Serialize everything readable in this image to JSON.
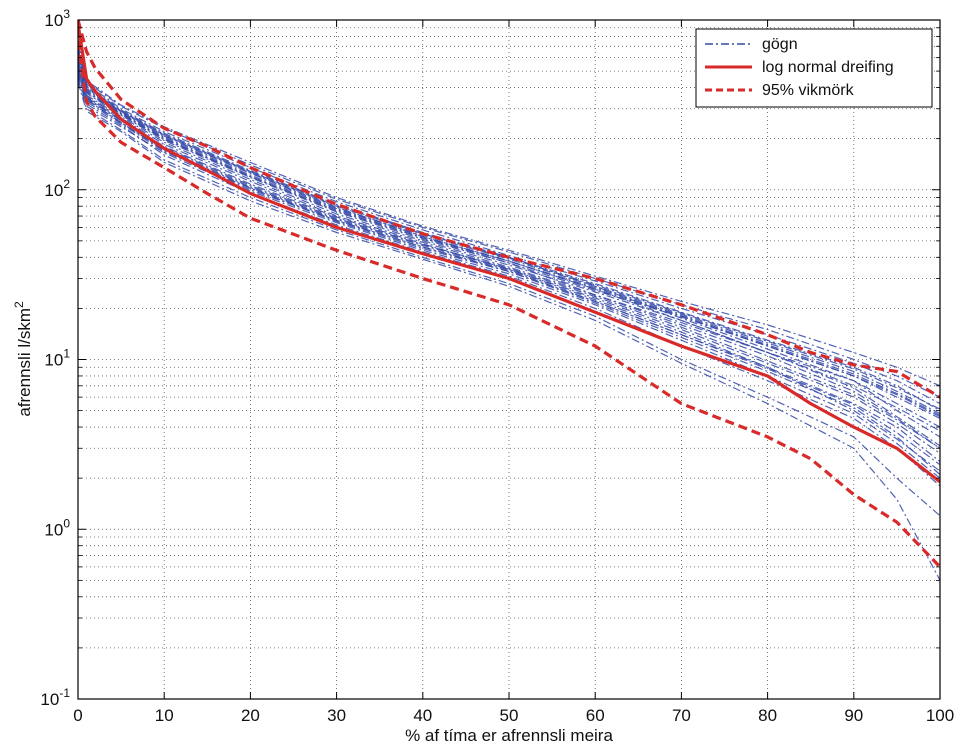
{
  "chart_data": {
    "type": "line",
    "title": "",
    "xlabel": "% af tíma er afrennsli meira",
    "ylabel": "afrennsli l/skm",
    "ylabel_superscript": "2",
    "xlim": [
      0,
      100
    ],
    "ylim": [
      0.1,
      1000
    ],
    "yscale": "log",
    "grid": true,
    "legend_position": "top-right",
    "x_ticks": [
      "0",
      "10",
      "20",
      "30",
      "40",
      "50",
      "60",
      "70",
      "80",
      "90",
      "100"
    ],
    "y_ticks": [
      {
        "base": "10",
        "exp": "-1"
      },
      {
        "base": "10",
        "exp": "0"
      },
      {
        "base": "10",
        "exp": "1"
      },
      {
        "base": "10",
        "exp": "2"
      },
      {
        "base": "10",
        "exp": "3"
      }
    ],
    "legend": [
      {
        "label": "gögn",
        "style": "dashdot-blue"
      },
      {
        "label": "log normal dreifing",
        "style": "solid-red"
      },
      {
        "label": "95% vikmörk",
        "style": "dashed-red"
      }
    ],
    "colors": {
      "data": "#3348a8",
      "fit": "#d92a2a"
    },
    "series": [
      {
        "name": "log normal dreifing",
        "style": "solid-red",
        "x": [
          0,
          1,
          2,
          5,
          10,
          15,
          20,
          30,
          40,
          50,
          60,
          70,
          80,
          85,
          90,
          95,
          100
        ],
        "y": [
          950,
          450,
          380,
          260,
          175,
          130,
          95,
          60,
          42,
          30,
          19,
          12,
          8,
          5.5,
          4,
          3,
          1.9
        ]
      },
      {
        "name": "95% vikmörk (upper)",
        "style": "dashed-red",
        "x": [
          0,
          1,
          2,
          5,
          10,
          15,
          20,
          30,
          40,
          50,
          60,
          70,
          80,
          85,
          90,
          95,
          100
        ],
        "y": [
          1000,
          650,
          520,
          340,
          230,
          180,
          135,
          82,
          55,
          40,
          30,
          21,
          14,
          11,
          9.3,
          8.5,
          6
        ]
      },
      {
        "name": "95% vikmörk (lower)",
        "style": "dashed-red",
        "x": [
          0,
          1,
          2,
          5,
          10,
          15,
          20,
          30,
          40,
          50,
          60,
          70,
          80,
          85,
          90,
          95,
          100
        ],
        "y": [
          750,
          330,
          270,
          190,
          135,
          95,
          68,
          44,
          30,
          21,
          12,
          5.5,
          3.5,
          2.6,
          1.6,
          1.1,
          0.6
        ]
      }
    ],
    "data_curves": {
      "name": "gögn",
      "style": "dashdot-blue",
      "x": [
        0,
        1,
        5,
        10,
        20,
        30,
        40,
        50,
        60,
        70,
        80,
        90,
        95,
        100
      ],
      "curves": [
        [
          600,
          380,
          280,
          200,
          120,
          75,
          52,
          38,
          26,
          18,
          12,
          8,
          6,
          4.5
        ],
        [
          550,
          360,
          270,
          190,
          115,
          72,
          50,
          36,
          25,
          17,
          11,
          7.5,
          5.5,
          4
        ],
        [
          720,
          400,
          290,
          210,
          128,
          80,
          55,
          40,
          28,
          19,
          13,
          9,
          7,
          5
        ],
        [
          500,
          340,
          250,
          170,
          100,
          66,
          46,
          33,
          22,
          14,
          9,
          5.5,
          4,
          2.5
        ],
        [
          650,
          420,
          300,
          220,
          135,
          85,
          58,
          41,
          29,
          20,
          14,
          9.5,
          7.5,
          5.5
        ],
        [
          480,
          320,
          240,
          160,
          95,
          62,
          43,
          31,
          20,
          12,
          7.5,
          4.5,
          3,
          1.8
        ],
        [
          580,
          370,
          275,
          195,
          118,
          74,
          51,
          37,
          24,
          16,
          10.5,
          6.5,
          4.5,
          3
        ],
        [
          700,
          430,
          310,
          230,
          140,
          88,
          60,
          43,
          30,
          21,
          15,
          10,
          8,
          6
        ],
        [
          450,
          300,
          225,
          150,
          90,
          58,
          40,
          28,
          18,
          10,
          6,
          3.5,
          2,
          1.2
        ],
        [
          620,
          390,
          285,
          205,
          125,
          78,
          54,
          39,
          27,
          18.5,
          12.5,
          8.5,
          6.5,
          4.8
        ],
        [
          520,
          350,
          260,
          180,
          108,
          69,
          48,
          34,
          23,
          15,
          9.5,
          6,
          4.2,
          2.8
        ],
        [
          680,
          410,
          295,
          215,
          130,
          82,
          56,
          40,
          27,
          17.5,
          11.5,
          7.5,
          5,
          3.5
        ],
        [
          560,
          355,
          265,
          185,
          112,
          70,
          49,
          35,
          24,
          16.5,
          11,
          7,
          5.2,
          3.8
        ],
        [
          470,
          310,
          235,
          165,
          98,
          64,
          44,
          32,
          21,
          13,
          8,
          4.8,
          3.2,
          2
        ],
        [
          640,
          395,
          288,
          208,
          126,
          79,
          53,
          38,
          26,
          17,
          11,
          6.8,
          4.6,
          3.1
        ],
        [
          530,
          345,
          255,
          175,
          104,
          67,
          47,
          34,
          22.5,
          14.5,
          9,
          5,
          3.4,
          2.2
        ],
        [
          600,
          375,
          278,
          198,
          119,
          76,
          52,
          37,
          25.5,
          17.8,
          12,
          8,
          6.2,
          4.6
        ],
        [
          490,
          330,
          245,
          168,
          102,
          65,
          45,
          33,
          21.5,
          13.5,
          8.5,
          5.2,
          3.5,
          2.1
        ],
        [
          760,
          440,
          315,
          235,
          145,
          90,
          61,
          44,
          31,
          22,
          16,
          11,
          9,
          7
        ],
        [
          430,
          290,
          220,
          145,
          86,
          56,
          39,
          27,
          17,
          9.5,
          5.5,
          3,
          1.5,
          0.5
        ],
        [
          610,
          385,
          282,
          202,
          122,
          77,
          53,
          38,
          26.5,
          18.2,
          12.2,
          8.2,
          6.3,
          4.7
        ],
        [
          540,
          348,
          258,
          178,
          106,
          68,
          47.5,
          34.5,
          23.5,
          15.5,
          9.8,
          6.2,
          4.4,
          3
        ],
        [
          660,
          405,
          292,
          212,
          128,
          81,
          55,
          39.5,
          27.5,
          18.8,
          12.8,
          8.8,
          6.8,
          5.1
        ],
        [
          510,
          338,
          248,
          172,
          103,
          66,
          46,
          33.5,
          22,
          14,
          8.8,
          5.4,
          3.7,
          2.4
        ]
      ]
    }
  }
}
